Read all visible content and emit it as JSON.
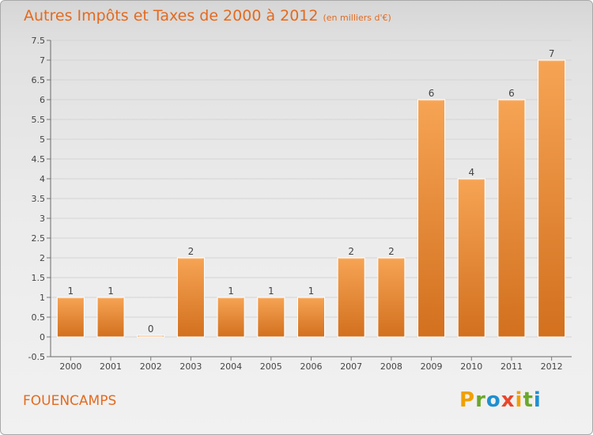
{
  "title": "Autres Impôts et Taxes de 2000 à 2012",
  "subtitle": "(en milliers d'€)",
  "commune": "FOUENCAMPS",
  "logo": {
    "letters": [
      "P",
      "r",
      "o",
      "x",
      "i",
      "t",
      "i"
    ],
    "colors": [
      "#f0a000",
      "#6aa82a",
      "#1f8fd0",
      "#e8462a",
      "#f0a000",
      "#6aa82a",
      "#1f8fd0"
    ]
  },
  "colors": {
    "bar": "#f0922e",
    "bar_light": "#f6a454",
    "bar_dark": "#d2701e",
    "title": "#e46a1e",
    "grid": "#d4d4d4"
  },
  "chart_data": {
    "type": "bar",
    "title": "Autres Impôts et Taxes de 2000 à 2012",
    "subtitle": "(en milliers d'€)",
    "xlabel": "",
    "ylabel": "",
    "categories": [
      "2000",
      "2001",
      "2002",
      "2003",
      "2004",
      "2005",
      "2006",
      "2007",
      "2008",
      "2009",
      "2010",
      "2011",
      "2012"
    ],
    "values": [
      1,
      1,
      0,
      2,
      1,
      1,
      1,
      2,
      2,
      6,
      4,
      6,
      7
    ],
    "data_labels": [
      "1",
      "1",
      "0",
      "2",
      "1",
      "1",
      "1",
      "2",
      "2",
      "6",
      "4",
      "6",
      "7"
    ],
    "ylim": [
      -0.5,
      7.5
    ],
    "yticks": [
      -0.5,
      0,
      0.5,
      1,
      1.5,
      2,
      2.5,
      3,
      3.5,
      4,
      4.5,
      5,
      5.5,
      6,
      6.5,
      7,
      7.5
    ],
    "ytick_labels": [
      "-0.5",
      "0",
      "0.5",
      "1",
      "1.5",
      "2",
      "2.5",
      "3",
      "3.5",
      "4",
      "4.5",
      "5",
      "5.5",
      "6",
      "6.5",
      "7",
      "7.5"
    ],
    "grid": true,
    "legend": "none"
  }
}
